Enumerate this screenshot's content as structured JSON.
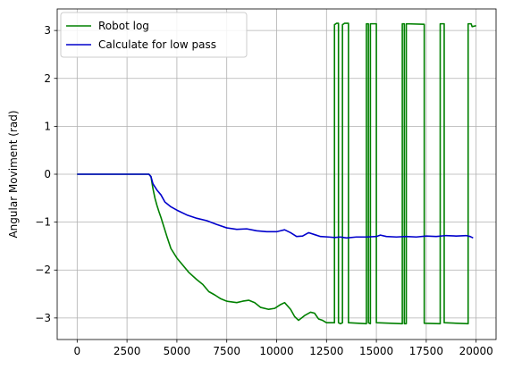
{
  "chart_data": {
    "type": "line",
    "title": "",
    "xlabel": "",
    "ylabel": "Angular Moviment (rad)",
    "xlim": [
      -1000,
      21000
    ],
    "ylim": [
      -3.45,
      3.45
    ],
    "xticks": [
      0,
      2500,
      5000,
      7500,
      10000,
      12500,
      15000,
      17500,
      20000
    ],
    "yticks": [
      -3,
      -2,
      -1,
      0,
      1,
      2,
      3
    ],
    "grid": true,
    "legend_position": "top-left",
    "series": [
      {
        "name": "Robot log",
        "color": "#008000",
        "points": [
          [
            0,
            0
          ],
          [
            3600,
            0
          ],
          [
            3700,
            -0.05
          ],
          [
            3800,
            -0.3
          ],
          [
            3900,
            -0.5
          ],
          [
            4000,
            -0.65
          ],
          [
            4100,
            -0.78
          ],
          [
            4200,
            -0.9
          ],
          [
            4350,
            -1.1
          ],
          [
            4500,
            -1.3
          ],
          [
            4700,
            -1.55
          ],
          [
            5000,
            -1.75
          ],
          [
            5300,
            -1.9
          ],
          [
            5600,
            -2.05
          ],
          [
            6000,
            -2.2
          ],
          [
            6300,
            -2.3
          ],
          [
            6600,
            -2.45
          ],
          [
            6900,
            -2.52
          ],
          [
            7200,
            -2.6
          ],
          [
            7500,
            -2.65
          ],
          [
            8000,
            -2.68
          ],
          [
            8300,
            -2.65
          ],
          [
            8600,
            -2.63
          ],
          [
            8900,
            -2.68
          ],
          [
            9200,
            -2.78
          ],
          [
            9600,
            -2.82
          ],
          [
            9900,
            -2.8
          ],
          [
            10200,
            -2.72
          ],
          [
            10400,
            -2.68
          ],
          [
            10700,
            -2.82
          ],
          [
            10900,
            -2.97
          ],
          [
            11100,
            -3.05
          ],
          [
            11400,
            -2.95
          ],
          [
            11700,
            -2.88
          ],
          [
            11900,
            -2.9
          ],
          [
            12100,
            -3.02
          ],
          [
            12300,
            -3.05
          ],
          [
            12500,
            -3.1
          ],
          [
            12900,
            -3.1
          ],
          [
            12900,
            3.12
          ],
          [
            13000,
            3.15
          ],
          [
            13100,
            3.15
          ],
          [
            13100,
            -3.1
          ],
          [
            13200,
            -3.12
          ],
          [
            13300,
            -3.1
          ],
          [
            13300,
            3.12
          ],
          [
            13400,
            3.15
          ],
          [
            13600,
            3.15
          ],
          [
            13600,
            -3.1
          ],
          [
            14500,
            -3.12
          ],
          [
            14500,
            3.14
          ],
          [
            14600,
            3.14
          ],
          [
            14600,
            -3.1
          ],
          [
            14700,
            -3.12
          ],
          [
            14700,
            3.14
          ],
          [
            15000,
            3.14
          ],
          [
            15000,
            -3.1
          ],
          [
            16300,
            -3.12
          ],
          [
            16300,
            3.14
          ],
          [
            16400,
            3.14
          ],
          [
            16400,
            -3.12
          ],
          [
            16500,
            -3.12
          ],
          [
            16500,
            3.14
          ],
          [
            17400,
            3.13
          ],
          [
            17400,
            -3.11
          ],
          [
            18200,
            -3.12
          ],
          [
            18200,
            3.14
          ],
          [
            18400,
            3.14
          ],
          [
            18400,
            -3.1
          ],
          [
            19600,
            -3.12
          ],
          [
            19600,
            3.14
          ],
          [
            19750,
            3.14
          ],
          [
            19800,
            3.08
          ],
          [
            20000,
            3.1
          ]
        ]
      },
      {
        "name": "Calculate for low pass",
        "color": "#0000cc",
        "points": [
          [
            0,
            0
          ],
          [
            3600,
            0
          ],
          [
            3700,
            -0.05
          ],
          [
            3800,
            -0.2
          ],
          [
            4000,
            -0.33
          ],
          [
            4200,
            -0.43
          ],
          [
            4400,
            -0.58
          ],
          [
            4700,
            -0.68
          ],
          [
            5000,
            -0.75
          ],
          [
            5500,
            -0.85
          ],
          [
            6000,
            -0.92
          ],
          [
            6500,
            -0.97
          ],
          [
            7000,
            -1.05
          ],
          [
            7500,
            -1.12
          ],
          [
            8000,
            -1.15
          ],
          [
            8500,
            -1.14
          ],
          [
            9000,
            -1.18
          ],
          [
            9500,
            -1.2
          ],
          [
            10000,
            -1.2
          ],
          [
            10200,
            -1.18
          ],
          [
            10400,
            -1.16
          ],
          [
            10700,
            -1.22
          ],
          [
            11000,
            -1.3
          ],
          [
            11300,
            -1.29
          ],
          [
            11600,
            -1.22
          ],
          [
            11900,
            -1.26
          ],
          [
            12200,
            -1.3
          ],
          [
            12600,
            -1.31
          ],
          [
            12900,
            -1.32
          ],
          [
            13200,
            -1.31
          ],
          [
            13500,
            -1.33
          ],
          [
            14000,
            -1.31
          ],
          [
            14500,
            -1.31
          ],
          [
            15000,
            -1.3
          ],
          [
            15200,
            -1.27
          ],
          [
            15500,
            -1.3
          ],
          [
            16000,
            -1.31
          ],
          [
            16500,
            -1.3
          ],
          [
            17000,
            -1.31
          ],
          [
            17500,
            -1.29
          ],
          [
            18000,
            -1.3
          ],
          [
            18500,
            -1.28
          ],
          [
            19000,
            -1.29
          ],
          [
            19500,
            -1.28
          ],
          [
            19700,
            -1.3
          ],
          [
            19850,
            -1.33
          ]
        ]
      }
    ]
  }
}
